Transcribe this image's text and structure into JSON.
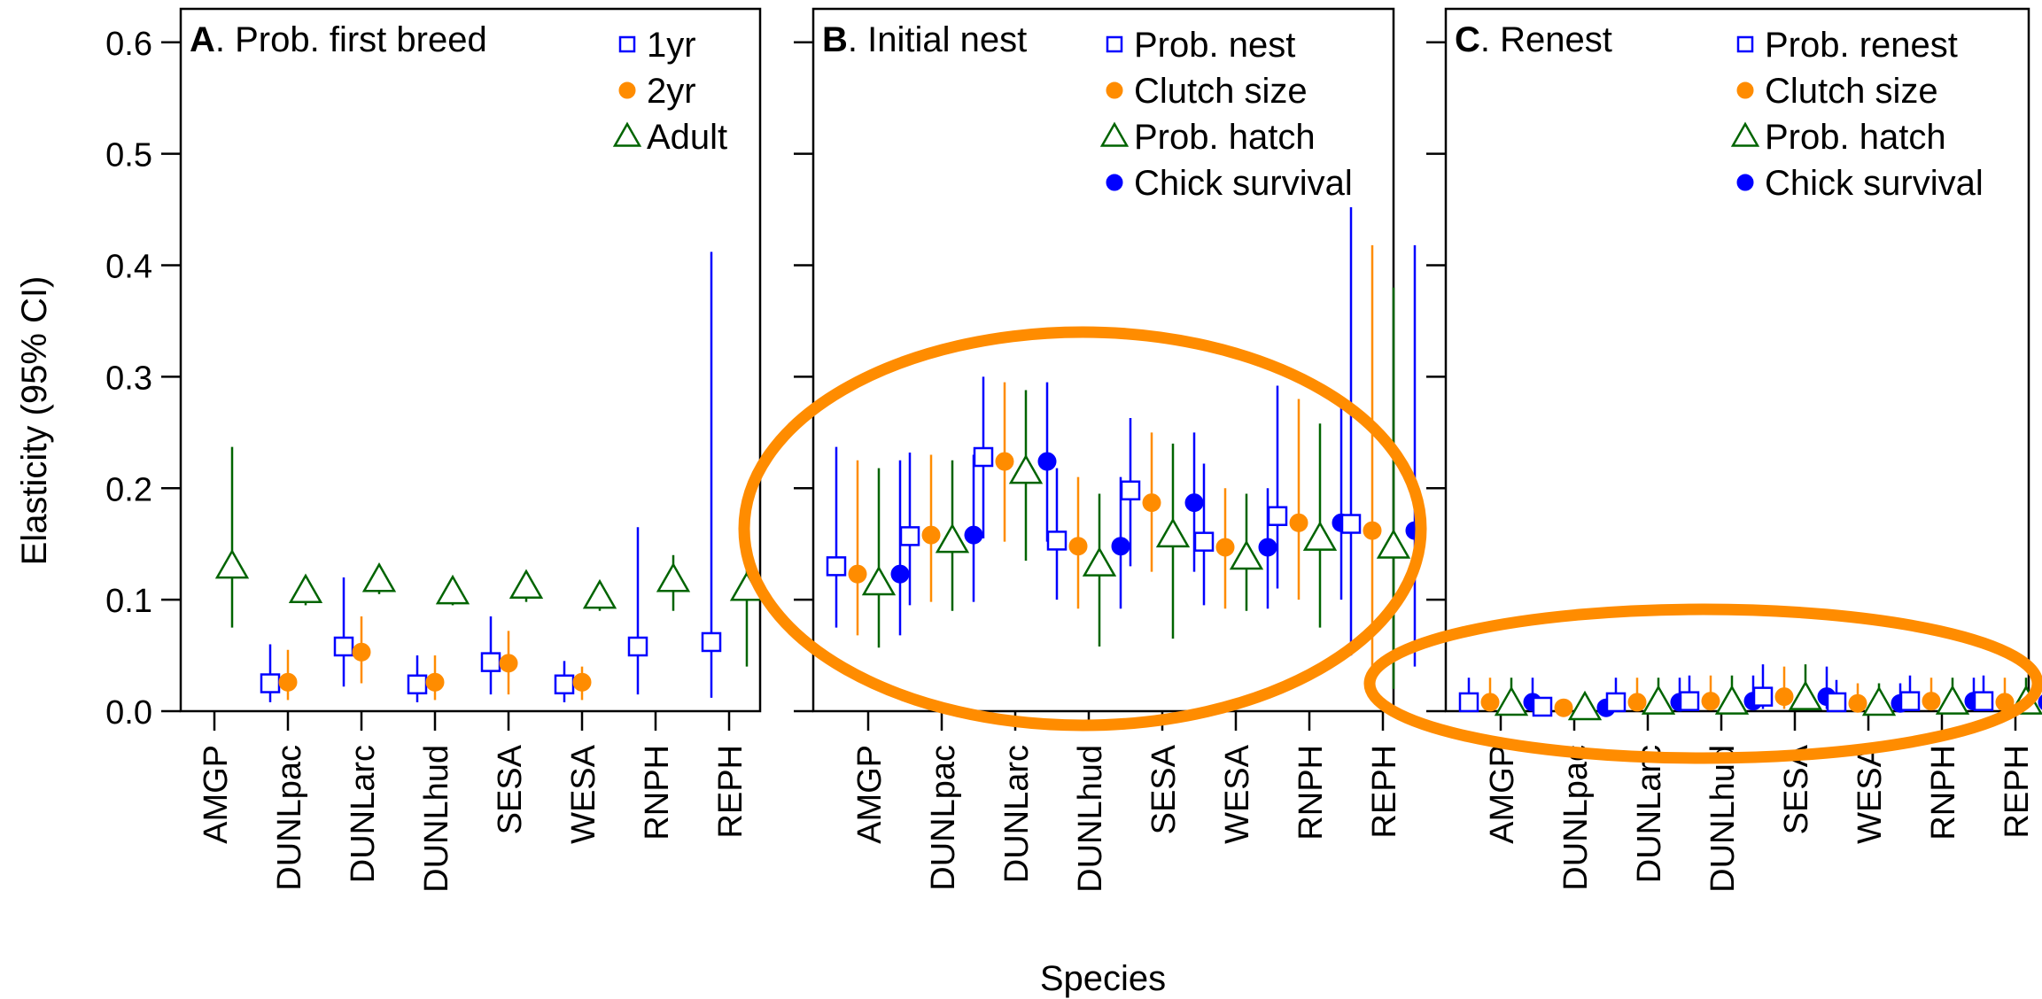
{
  "ylabel": "Elasticity (95% CI)",
  "xlabel": "Species",
  "colors": {
    "square": "#0000ff",
    "orange": "#ff8c00",
    "triangle": "#006400",
    "blue_dot": "#0000ff",
    "highlight": "#ff8c00"
  },
  "chart_data": [
    {
      "type": "scatter",
      "panel_letter": "A",
      "title": ". Prob. first breed",
      "categories": [
        "AMGP",
        "DUNLpac",
        "DUNLarc",
        "DUNLhud",
        "SESA",
        "WESA",
        "RNPH",
        "REPH"
      ],
      "ylim": [
        0,
        0.63
      ],
      "yticks": [
        0.0,
        0.1,
        0.2,
        0.3,
        0.4,
        0.5,
        0.6
      ],
      "yticklabels": [
        "0.0",
        "0.1",
        "0.2",
        "0.3",
        "0.4",
        "0.5",
        "0.6"
      ],
      "legend": "top-right",
      "series": [
        {
          "name": "1yr",
          "marker": "square",
          "values": [
            null,
            0.025,
            0.058,
            0.024,
            0.044,
            0.024,
            0.058,
            0.062
          ],
          "lower": [
            null,
            0.008,
            0.022,
            0.008,
            0.015,
            0.008,
            0.015,
            0.012
          ],
          "upper": [
            null,
            0.06,
            0.12,
            0.05,
            0.085,
            0.045,
            0.165,
            0.412
          ]
        },
        {
          "name": "2yr",
          "marker": "orange",
          "values": [
            null,
            0.026,
            0.053,
            0.026,
            0.043,
            0.026,
            null,
            null
          ],
          "lower": [
            null,
            0.01,
            0.025,
            0.01,
            0.015,
            0.01,
            null,
            null
          ],
          "upper": [
            null,
            0.055,
            0.085,
            0.05,
            0.072,
            0.04,
            null,
            null
          ]
        },
        {
          "name": "Adult",
          "marker": "triangle",
          "values": [
            0.13,
            0.108,
            0.118,
            0.107,
            0.112,
            0.103,
            0.118,
            0.11
          ],
          "lower": [
            0.075,
            0.095,
            0.105,
            0.095,
            0.098,
            0.09,
            0.09,
            0.04
          ],
          "upper": [
            0.237,
            0.12,
            0.132,
            0.118,
            0.125,
            0.115,
            0.14,
            0.135
          ]
        }
      ]
    },
    {
      "type": "scatter",
      "panel_letter": "B",
      "title": ". Initial nest",
      "categories": [
        "AMGP",
        "DUNLpac",
        "DUNLarc",
        "DUNLhud",
        "SESA",
        "WESA",
        "RNPH",
        "REPH"
      ],
      "ylim": [
        0,
        0.63
      ],
      "legend": "top-right",
      "series": [
        {
          "name": "Prob. nest",
          "marker": "square",
          "values": [
            0.13,
            0.157,
            0.228,
            0.153,
            0.198,
            0.152,
            0.175,
            0.168
          ],
          "lower": [
            0.075,
            0.095,
            0.155,
            0.1,
            0.13,
            0.095,
            0.11,
            0.05
          ],
          "upper": [
            0.237,
            0.232,
            0.3,
            0.218,
            0.263,
            0.222,
            0.292,
            0.452
          ]
        },
        {
          "name": "Clutch size",
          "marker": "orange",
          "values": [
            0.123,
            0.158,
            0.224,
            0.148,
            0.187,
            0.147,
            0.169,
            0.162
          ],
          "lower": [
            0.068,
            0.098,
            0.152,
            0.092,
            0.125,
            0.092,
            0.1,
            0.04
          ],
          "upper": [
            0.225,
            0.23,
            0.295,
            0.21,
            0.25,
            0.2,
            0.28,
            0.418
          ]
        },
        {
          "name": "Prob. hatch",
          "marker": "triangle",
          "values": [
            0.115,
            0.153,
            0.215,
            0.132,
            0.158,
            0.138,
            0.155,
            0.148
          ],
          "lower": [
            0.057,
            0.09,
            0.135,
            0.058,
            0.065,
            0.09,
            0.075,
            0.02
          ],
          "upper": [
            0.218,
            0.225,
            0.288,
            0.195,
            0.24,
            0.195,
            0.258,
            0.38
          ]
        },
        {
          "name": "Chick survival",
          "marker": "blue_dot",
          "values": [
            0.123,
            0.158,
            0.224,
            0.148,
            0.187,
            0.147,
            0.169,
            0.162
          ],
          "lower": [
            0.068,
            0.098,
            0.152,
            0.092,
            0.125,
            0.092,
            0.1,
            0.04
          ],
          "upper": [
            0.225,
            0.23,
            0.295,
            0.21,
            0.25,
            0.2,
            0.28,
            0.418
          ]
        }
      ]
    },
    {
      "type": "scatter",
      "panel_letter": "C",
      "title": ". Renest",
      "categories": [
        "AMGP",
        "DUNLpac",
        "DUNLarc",
        "DUNLhud",
        "SESA",
        "WESA",
        "RNPH",
        "REPH"
      ],
      "ylim": [
        0,
        0.63
      ],
      "legend": "top-right",
      "series": [
        {
          "name": "Prob. renest",
          "marker": "square",
          "values": [
            0.008,
            0.004,
            0.008,
            0.009,
            0.013,
            0.008,
            0.009,
            0.009
          ],
          "lower": [
            0.001,
            0.001,
            0.001,
            0.001,
            0.002,
            0.001,
            0.001,
            0.001
          ],
          "upper": [
            0.03,
            0.008,
            0.03,
            0.032,
            0.042,
            0.028,
            0.032,
            0.032
          ]
        },
        {
          "name": "Clutch size",
          "marker": "orange",
          "values": [
            0.008,
            0.003,
            0.008,
            0.009,
            0.013,
            0.007,
            0.009,
            0.008
          ],
          "lower": [
            0.001,
            0.001,
            0.001,
            0.001,
            0.002,
            0.001,
            0.001,
            0.001
          ],
          "upper": [
            0.03,
            0.007,
            0.03,
            0.032,
            0.04,
            0.025,
            0.03,
            0.03
          ]
        },
        {
          "name": "Prob. hatch",
          "marker": "triangle",
          "values": [
            0.007,
            0.003,
            0.008,
            0.008,
            0.012,
            0.007,
            0.008,
            0.008
          ],
          "lower": [
            0.001,
            0.001,
            0.001,
            0.001,
            0.002,
            0.001,
            0.001,
            0.001
          ],
          "upper": [
            0.03,
            0.007,
            0.03,
            0.032,
            0.042,
            0.025,
            0.03,
            0.03
          ]
        },
        {
          "name": "Chick survival",
          "marker": "blue_dot",
          "values": [
            0.008,
            0.003,
            0.008,
            0.009,
            0.013,
            0.007,
            0.009,
            0.008
          ],
          "lower": [
            0.001,
            0.001,
            0.001,
            0.001,
            0.002,
            0.001,
            0.001,
            0.001
          ],
          "upper": [
            0.03,
            0.007,
            0.03,
            0.032,
            0.04,
            0.025,
            0.03,
            0.03
          ]
        }
      ]
    }
  ]
}
